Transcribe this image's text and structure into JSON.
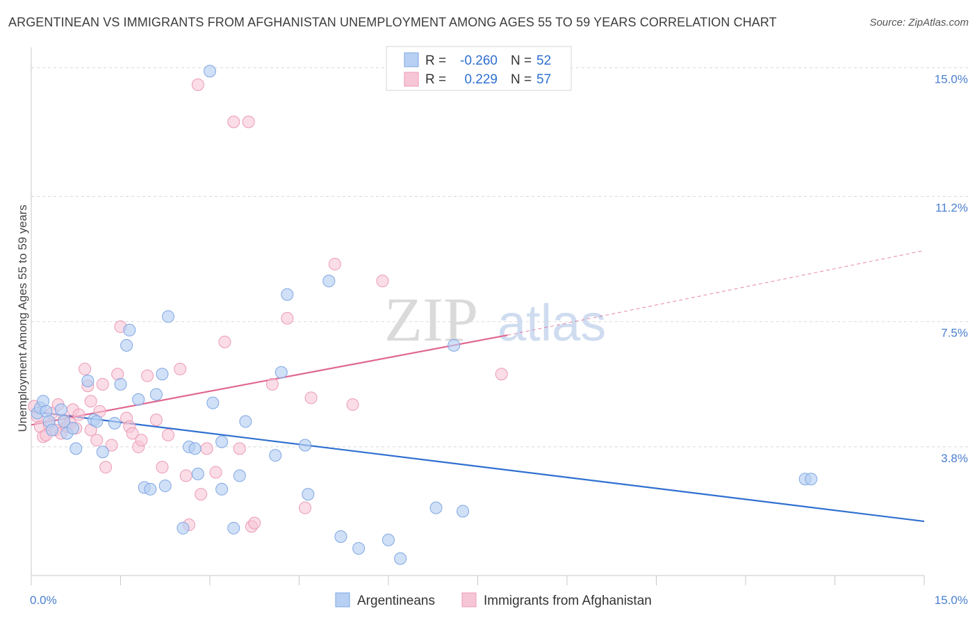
{
  "header": {
    "title": "ARGENTINEAN VS IMMIGRANTS FROM AFGHANISTAN UNEMPLOYMENT AMONG AGES 55 TO 59 YEARS CORRELATION CHART",
    "source": "Source: ZipAtlas.com"
  },
  "watermark": {
    "zip": "ZIP",
    "atlas": "atlas"
  },
  "legend": {
    "r_label": "R =",
    "n_label": "N =",
    "rows": [
      {
        "r": "-0.260",
        "n": "52",
        "color": "#8fb4ee"
      },
      {
        "r": "0.229",
        "n": "57",
        "color": "#f2a7bf"
      }
    ]
  },
  "colors": {
    "blue_fill": "#b7d0f3",
    "blue_stroke": "#7ea6e3",
    "blue_line": "#2f6fd0",
    "pink_fill": "#f7c6d6",
    "pink_stroke": "#ec9ab5",
    "pink_line": "#e0668f",
    "grid": "#d8d8d8",
    "tick_label": "#4a7fcf"
  },
  "chart_data": {
    "type": "scatter",
    "title": "ARGENTINEAN VS IMMIGRANTS FROM AFGHANISTAN UNEMPLOYMENT AMONG AGES 55 TO 59 YEARS CORRELATION CHART",
    "xlabel": "",
    "ylabel": "Unemployment Among Ages 55 to 59 years",
    "xlim": [
      0,
      15
    ],
    "ylim": [
      0,
      15.4
    ],
    "x_tick_labels": [
      "0.0%",
      "15.0%"
    ],
    "y_ticks": [
      3.8,
      7.5,
      11.2,
      15.0
    ],
    "y_tick_labels": [
      "3.8%",
      "7.5%",
      "11.2%",
      "15.0%"
    ],
    "grid": "horizontal dashed",
    "legend_position": "top-center",
    "series": [
      {
        "name": "Argentineans",
        "r": -0.26,
        "n": 52,
        "trend": {
          "x": [
            0.0,
            15.0
          ],
          "y": [
            4.85,
            1.6
          ]
        },
        "points": [
          [
            0.1,
            4.8
          ],
          [
            0.15,
            4.95
          ],
          [
            0.2,
            5.15
          ],
          [
            0.25,
            4.85
          ],
          [
            0.3,
            4.55
          ],
          [
            0.35,
            4.3
          ],
          [
            0.5,
            4.9
          ],
          [
            0.55,
            4.55
          ],
          [
            0.6,
            4.2
          ],
          [
            0.7,
            4.35
          ],
          [
            0.75,
            3.75
          ],
          [
            0.95,
            5.75
          ],
          [
            1.05,
            4.6
          ],
          [
            1.1,
            4.55
          ],
          [
            1.2,
            3.65
          ],
          [
            1.4,
            4.5
          ],
          [
            1.5,
            5.65
          ],
          [
            1.6,
            6.8
          ],
          [
            1.65,
            7.25
          ],
          [
            1.8,
            5.2
          ],
          [
            1.9,
            2.6
          ],
          [
            2.0,
            2.55
          ],
          [
            2.1,
            5.35
          ],
          [
            2.2,
            5.95
          ],
          [
            2.25,
            2.65
          ],
          [
            2.3,
            7.65
          ],
          [
            2.55,
            1.4
          ],
          [
            2.65,
            3.8
          ],
          [
            2.75,
            3.75
          ],
          [
            2.8,
            3.0
          ],
          [
            3.0,
            14.9
          ],
          [
            3.05,
            5.1
          ],
          [
            3.2,
            2.55
          ],
          [
            3.2,
            3.95
          ],
          [
            3.4,
            1.4
          ],
          [
            3.5,
            2.95
          ],
          [
            3.6,
            4.55
          ],
          [
            4.1,
            3.55
          ],
          [
            4.2,
            6.0
          ],
          [
            4.3,
            8.3
          ],
          [
            4.6,
            3.85
          ],
          [
            4.65,
            2.4
          ],
          [
            5.0,
            8.7
          ],
          [
            5.2,
            1.15
          ],
          [
            5.5,
            0.8
          ],
          [
            6.0,
            1.05
          ],
          [
            6.2,
            0.5
          ],
          [
            6.8,
            2.0
          ],
          [
            7.1,
            6.8
          ],
          [
            7.25,
            1.9
          ],
          [
            13.0,
            2.85
          ],
          [
            13.1,
            2.85
          ]
        ]
      },
      {
        "name": "Immigrants from Afghanistan",
        "r": 0.229,
        "n": 57,
        "trend": {
          "x": [
            0.0,
            8.0
          ],
          "y": [
            4.45,
            7.1
          ]
        },
        "trend_extension": {
          "x": [
            8.0,
            15.0
          ],
          "y": [
            7.1,
            9.6
          ]
        },
        "points": [
          [
            0.05,
            5.0
          ],
          [
            0.1,
            4.7
          ],
          [
            0.15,
            4.4
          ],
          [
            0.2,
            4.1
          ],
          [
            0.25,
            4.15
          ],
          [
            0.3,
            4.45
          ],
          [
            0.35,
            4.8
          ],
          [
            0.4,
            4.3
          ],
          [
            0.45,
            5.05
          ],
          [
            0.5,
            4.2
          ],
          [
            0.55,
            4.6
          ],
          [
            0.6,
            4.4
          ],
          [
            0.65,
            4.5
          ],
          [
            0.7,
            4.9
          ],
          [
            0.8,
            4.75
          ],
          [
            0.9,
            6.1
          ],
          [
            0.95,
            5.6
          ],
          [
            1.0,
            5.15
          ],
          [
            1.1,
            4.0
          ],
          [
            1.15,
            4.85
          ],
          [
            1.2,
            5.65
          ],
          [
            1.25,
            3.2
          ],
          [
            1.35,
            3.85
          ],
          [
            1.45,
            5.95
          ],
          [
            1.5,
            7.35
          ],
          [
            1.6,
            4.65
          ],
          [
            1.65,
            4.4
          ],
          [
            1.7,
            4.2
          ],
          [
            1.8,
            3.8
          ],
          [
            1.85,
            4.0
          ],
          [
            1.95,
            5.9
          ],
          [
            2.1,
            4.6
          ],
          [
            2.2,
            3.2
          ],
          [
            2.3,
            4.15
          ],
          [
            2.5,
            6.1
          ],
          [
            2.6,
            2.95
          ],
          [
            2.65,
            1.5
          ],
          [
            2.85,
            2.4
          ],
          [
            2.95,
            3.75
          ],
          [
            3.1,
            3.05
          ],
          [
            3.25,
            6.9
          ],
          [
            3.4,
            13.4
          ],
          [
            3.5,
            3.75
          ],
          [
            3.65,
            13.4
          ],
          [
            3.7,
            1.45
          ],
          [
            3.75,
            1.55
          ],
          [
            4.05,
            5.65
          ],
          [
            4.3,
            7.6
          ],
          [
            4.6,
            2.0
          ],
          [
            4.7,
            5.25
          ],
          [
            5.1,
            9.2
          ],
          [
            5.4,
            5.05
          ],
          [
            5.9,
            8.7
          ],
          [
            7.9,
            5.95
          ],
          [
            2.8,
            14.5
          ],
          [
            1.0,
            4.3
          ],
          [
            0.75,
            4.35
          ]
        ]
      }
    ]
  },
  "bottom_legend": {
    "items": [
      {
        "label": "Argentineans"
      },
      {
        "label": "Immigrants from Afghanistan"
      }
    ]
  }
}
